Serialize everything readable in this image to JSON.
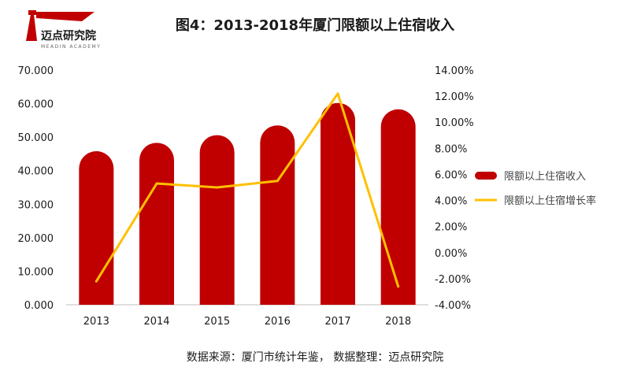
{
  "logo": {
    "name": "迈点研究院",
    "tagline": "MEADIN ACADEMY",
    "color": "#c00000"
  },
  "chart_data": {
    "type": "bar",
    "title": "图4：2013-2018年厦门限额以上住宿收入",
    "categories": [
      "2013",
      "2014",
      "2015",
      "2016",
      "2017",
      "2018"
    ],
    "series": [
      {
        "name": "限额以上住宿收入",
        "type": "bar",
        "axis": "left",
        "color": "#c00000",
        "values": [
          45.8,
          48.3,
          50.6,
          53.5,
          60.2,
          58.3
        ]
      },
      {
        "name": "限额以上住宿增长率",
        "type": "line",
        "axis": "right",
        "color": "#ffc000",
        "values": [
          -2.2,
          5.3,
          5.0,
          5.5,
          12.2,
          -2.6
        ]
      }
    ],
    "y_left": {
      "min": 0,
      "max": 70,
      "ticks": [
        "0.000",
        "10.000",
        "20.000",
        "30.000",
        "40.000",
        "50.000",
        "60.000",
        "70.000"
      ]
    },
    "y_right": {
      "min": -4,
      "max": 14,
      "ticks": [
        "-4.00%",
        "-2.00%",
        "0.00%",
        "2.00%",
        "4.00%",
        "6.00%",
        "8.00%",
        "10.00%",
        "12.00%",
        "14.00%"
      ]
    },
    "legend_position": "right",
    "grid": false
  },
  "footer": {
    "source": "数据来源：厦门市统计年鉴， 数据整理：迈点研究院"
  }
}
